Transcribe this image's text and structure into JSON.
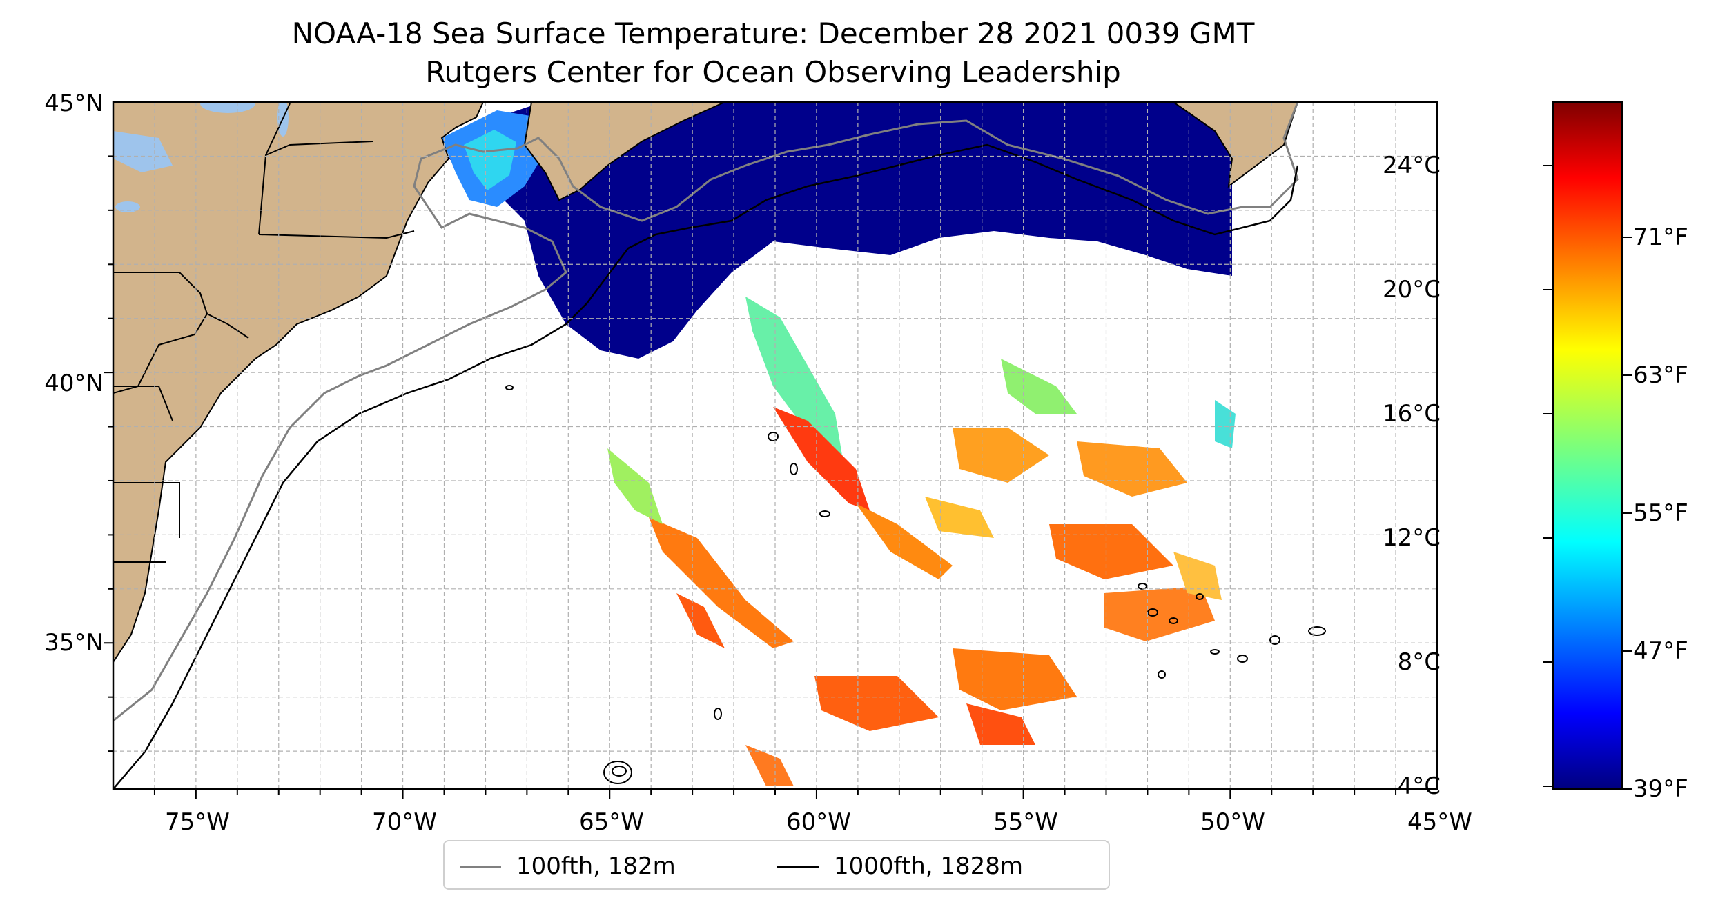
{
  "title": {
    "line1": "NOAA-18 Sea Surface Temperature: December 28 2021 0039 GMT",
    "line2": "Rutgers Center for Ocean Observing Leadership"
  },
  "map": {
    "lon_range": [
      -77,
      -45
    ],
    "lat_range": [
      32.3,
      45
    ],
    "land_color": "#d2b48c",
    "lake_color": "#9ec4ec",
    "longitude_labels": [
      "75°W",
      "70°W",
      "65°W",
      "60°W",
      "55°W",
      "50°W",
      "45°W"
    ],
    "latitude_labels": [
      "45°N",
      "40°N",
      "35°N"
    ]
  },
  "colorbar": {
    "colormap": "jet",
    "celsius_labels": [
      "24°C",
      "20°C",
      "16°C",
      "12°C",
      "8°C",
      "4°C"
    ],
    "fahrenheit_labels": [
      "71°F",
      "63°F",
      "55°F",
      "47°F",
      "39°F"
    ]
  },
  "legend": {
    "items": [
      {
        "label": "100fth, 182m",
        "color": "#808080"
      },
      {
        "label": "1000fth, 1828m",
        "color": "#000000"
      }
    ]
  }
}
